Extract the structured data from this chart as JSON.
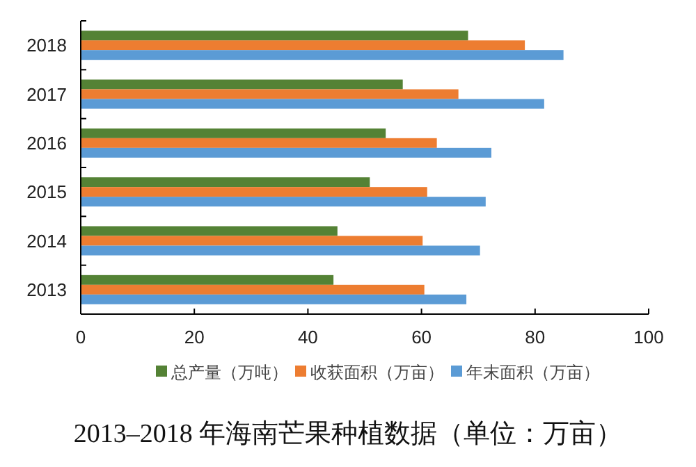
{
  "chart_data": {
    "type": "bar",
    "orientation": "horizontal",
    "title": "2013–2018 年海南芒果种植数据（单位：万亩）",
    "categories": [
      "2018",
      "2017",
      "2016",
      "2015",
      "2014",
      "2013"
    ],
    "series": [
      {
        "name": "总产量（万吨）",
        "color": "#548235",
        "values": [
          68.2,
          56.7,
          53.7,
          50.9,
          45.2,
          44.5
        ]
      },
      {
        "name": "收获面积（万亩）",
        "color": "#ed7d31",
        "values": [
          78.2,
          66.5,
          62.7,
          61.0,
          60.2,
          60.5
        ]
      },
      {
        "name": "年末面积（万亩）",
        "color": "#5b9bd5",
        "values": [
          85.0,
          81.6,
          72.3,
          71.3,
          70.3,
          67.9
        ]
      }
    ],
    "xlim": [
      0,
      100
    ],
    "xticks": [
      0,
      20,
      40,
      60,
      80,
      100
    ],
    "legend": "bottom",
    "grid": false
  }
}
